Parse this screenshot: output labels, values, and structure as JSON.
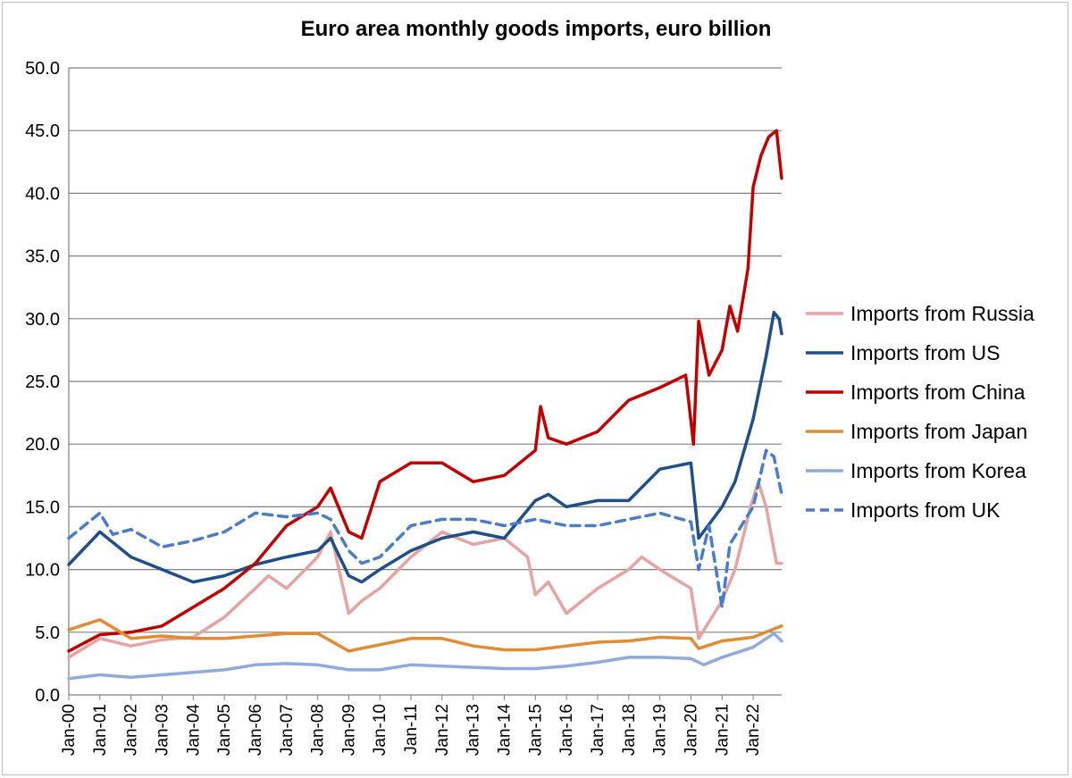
{
  "chart_data": {
    "type": "line",
    "title": "Euro area monthly goods imports, euro billion",
    "xlabel": "",
    "ylabel": "",
    "ylim": [
      0,
      50
    ],
    "yticks": [
      "0.0",
      "5.0",
      "10.0",
      "15.0",
      "20.0",
      "25.0",
      "30.0",
      "35.0",
      "40.0",
      "45.0",
      "50.0"
    ],
    "xticks": [
      "Jan-00",
      "Jan-01",
      "Jan-02",
      "Jan-03",
      "Jan-04",
      "Jan-05",
      "Jan-06",
      "Jan-07",
      "Jan-08",
      "Jan-09",
      "Jan-10",
      "Jan-11",
      "Jan-12",
      "Jan-13",
      "Jan-14",
      "Jan-15",
      "Jan-16",
      "Jan-17",
      "Jan-18",
      "Jan-19",
      "Jan-20",
      "Jan-21",
      "Jan-22"
    ],
    "x_range": [
      "Jan-00",
      "Dec-22"
    ],
    "grid": "horizontal",
    "legend_position": "right",
    "series": [
      {
        "name": "Imports from Russia",
        "color": "#e6a3a3",
        "dash": "solid",
        "points": [
          [
            "Jan-00",
            3.0
          ],
          [
            "Jan-01",
            4.5
          ],
          [
            "Jan-02",
            3.9
          ],
          [
            "Jan-03",
            4.4
          ],
          [
            "Jan-04",
            4.6
          ],
          [
            "Jan-05",
            6.2
          ],
          [
            "Jan-06",
            8.5
          ],
          [
            "Jun-06",
            9.5
          ],
          [
            "Jan-07",
            8.5
          ],
          [
            "Jan-08",
            11.0
          ],
          [
            "Jun-08",
            13.0
          ],
          [
            "Jan-09",
            6.5
          ],
          [
            "Jun-09",
            7.5
          ],
          [
            "Jan-10",
            8.5
          ],
          [
            "Jan-11",
            11.0
          ],
          [
            "Jan-12",
            13.0
          ],
          [
            "Jan-13",
            12.0
          ],
          [
            "Jan-14",
            12.5
          ],
          [
            "Oct-14",
            11.0
          ],
          [
            "Jan-15",
            8.0
          ],
          [
            "Jun-15",
            9.0
          ],
          [
            "Jan-16",
            6.5
          ],
          [
            "Jan-17",
            8.5
          ],
          [
            "Jan-18",
            10.0
          ],
          [
            "Jun-18",
            11.0
          ],
          [
            "Jan-19",
            10.0
          ],
          [
            "Jan-20",
            8.5
          ],
          [
            "Apr-20",
            4.5
          ],
          [
            "Jan-21",
            7.5
          ],
          [
            "Jun-21",
            10.0
          ],
          [
            "Dec-21",
            15.0
          ],
          [
            "Mar-22",
            17.0
          ],
          [
            "Jun-22",
            15.0
          ],
          [
            "Oct-22",
            10.5
          ],
          [
            "Dec-22",
            10.5
          ]
        ]
      },
      {
        "name": "Imports from US",
        "color": "#1f4e89",
        "dash": "solid",
        "points": [
          [
            "Jan-00",
            10.4
          ],
          [
            "Jan-01",
            13.0
          ],
          [
            "Jan-02",
            11.0
          ],
          [
            "Jan-03",
            10.0
          ],
          [
            "Jan-04",
            9.0
          ],
          [
            "Jan-05",
            9.5
          ],
          [
            "Jan-06",
            10.4
          ],
          [
            "Jan-07",
            11.0
          ],
          [
            "Jan-08",
            11.5
          ],
          [
            "Jun-08",
            12.5
          ],
          [
            "Jan-09",
            9.5
          ],
          [
            "Jun-09",
            9.0
          ],
          [
            "Jan-10",
            10.0
          ],
          [
            "Jan-11",
            11.5
          ],
          [
            "Jan-12",
            12.5
          ],
          [
            "Jan-13",
            13.0
          ],
          [
            "Jan-14",
            12.5
          ],
          [
            "Jan-15",
            15.5
          ],
          [
            "Jun-15",
            16.0
          ],
          [
            "Jan-16",
            15.0
          ],
          [
            "Jan-17",
            15.5
          ],
          [
            "Jan-18",
            15.5
          ],
          [
            "Jan-19",
            18.0
          ],
          [
            "Jan-20",
            18.5
          ],
          [
            "Apr-20",
            12.5
          ],
          [
            "Jan-21",
            15.0
          ],
          [
            "Jun-21",
            17.0
          ],
          [
            "Jan-22",
            22.0
          ],
          [
            "Jun-22",
            27.0
          ],
          [
            "Sep-22",
            30.5
          ],
          [
            "Nov-22",
            30.0
          ],
          [
            "Dec-22",
            28.8
          ]
        ]
      },
      {
        "name": "Imports from China",
        "color": "#c00000",
        "dash": "solid",
        "points": [
          [
            "Jan-00",
            3.5
          ],
          [
            "Jan-01",
            4.8
          ],
          [
            "Jan-02",
            5.0
          ],
          [
            "Jan-03",
            5.5
          ],
          [
            "Jan-04",
            7.0
          ],
          [
            "Jan-05",
            8.5
          ],
          [
            "Jan-06",
            10.5
          ],
          [
            "Jan-07",
            13.5
          ],
          [
            "Jan-08",
            15.0
          ],
          [
            "Jun-08",
            16.5
          ],
          [
            "Jan-09",
            13.0
          ],
          [
            "Jun-09",
            12.5
          ],
          [
            "Jan-10",
            17.0
          ],
          [
            "Jan-11",
            18.5
          ],
          [
            "Jan-12",
            18.5
          ],
          [
            "Jan-13",
            17.0
          ],
          [
            "Jan-14",
            17.5
          ],
          [
            "Jan-15",
            19.5
          ],
          [
            "Mar-15",
            23.0
          ],
          [
            "Jun-15",
            20.5
          ],
          [
            "Jan-16",
            20.0
          ],
          [
            "Jan-17",
            21.0
          ],
          [
            "Jan-18",
            23.5
          ],
          [
            "Jan-19",
            24.5
          ],
          [
            "Nov-19",
            25.5
          ],
          [
            "Feb-20",
            20.0
          ],
          [
            "Apr-20",
            29.8
          ],
          [
            "Aug-20",
            25.5
          ],
          [
            "Jan-21",
            27.5
          ],
          [
            "Apr-21",
            31.0
          ],
          [
            "Jul-21",
            29.0
          ],
          [
            "Nov-21",
            34.0
          ],
          [
            "Jan-22",
            40.5
          ],
          [
            "Apr-22",
            43.0
          ],
          [
            "Jul-22",
            44.5
          ],
          [
            "Oct-22",
            45.0
          ],
          [
            "Dec-22",
            41.2
          ]
        ]
      },
      {
        "name": "Imports from Japan",
        "color": "#e38b32",
        "dash": "solid",
        "points": [
          [
            "Jan-00",
            5.2
          ],
          [
            "Jan-01",
            6.0
          ],
          [
            "Jan-02",
            4.5
          ],
          [
            "Jan-03",
            4.7
          ],
          [
            "Jan-04",
            4.5
          ],
          [
            "Jan-05",
            4.5
          ],
          [
            "Jan-06",
            4.7
          ],
          [
            "Jan-07",
            4.9
          ],
          [
            "Jan-08",
            4.9
          ],
          [
            "Jan-09",
            3.5
          ],
          [
            "Jan-10",
            4.0
          ],
          [
            "Jan-11",
            4.5
          ],
          [
            "Jan-12",
            4.5
          ],
          [
            "Jan-13",
            3.9
          ],
          [
            "Jan-14",
            3.6
          ],
          [
            "Jan-15",
            3.6
          ],
          [
            "Jan-16",
            3.9
          ],
          [
            "Jan-17",
            4.2
          ],
          [
            "Jan-18",
            4.3
          ],
          [
            "Jan-19",
            4.6
          ],
          [
            "Jan-20",
            4.5
          ],
          [
            "Apr-20",
            3.7
          ],
          [
            "Jan-21",
            4.3
          ],
          [
            "Jan-22",
            4.6
          ],
          [
            "Dec-22",
            5.5
          ]
        ]
      },
      {
        "name": "Imports from Korea",
        "color": "#8faadc",
        "dash": "solid",
        "points": [
          [
            "Jan-00",
            1.3
          ],
          [
            "Jan-01",
            1.6
          ],
          [
            "Jan-02",
            1.4
          ],
          [
            "Jan-03",
            1.6
          ],
          [
            "Jan-04",
            1.8
          ],
          [
            "Jan-05",
            2.0
          ],
          [
            "Jan-06",
            2.4
          ],
          [
            "Jan-07",
            2.5
          ],
          [
            "Jan-08",
            2.4
          ],
          [
            "Jan-09",
            2.0
          ],
          [
            "Jan-10",
            2.0
          ],
          [
            "Jan-11",
            2.4
          ],
          [
            "Jan-12",
            2.3
          ],
          [
            "Jan-13",
            2.2
          ],
          [
            "Jan-14",
            2.1
          ],
          [
            "Jan-15",
            2.1
          ],
          [
            "Jan-16",
            2.3
          ],
          [
            "Jan-17",
            2.6
          ],
          [
            "Jan-18",
            3.0
          ],
          [
            "Jan-19",
            3.0
          ],
          [
            "Jan-20",
            2.9
          ],
          [
            "Jun-20",
            2.4
          ],
          [
            "Jan-21",
            3.0
          ],
          [
            "Jan-22",
            3.8
          ],
          [
            "Sep-22",
            4.9
          ],
          [
            "Dec-22",
            4.3
          ]
        ]
      },
      {
        "name": "Imports from UK",
        "color": "#4a7cc9",
        "dash": "dashed",
        "points": [
          [
            "Jan-00",
            12.5
          ],
          [
            "Jan-01",
            14.5
          ],
          [
            "Jun-01",
            12.8
          ],
          [
            "Jan-02",
            13.2
          ],
          [
            "Jan-03",
            11.8
          ],
          [
            "Jan-04",
            12.3
          ],
          [
            "Jan-05",
            13.0
          ],
          [
            "Jan-06",
            14.5
          ],
          [
            "Jan-07",
            14.2
          ],
          [
            "Jan-08",
            14.5
          ],
          [
            "Jun-08",
            14.0
          ],
          [
            "Jan-09",
            11.5
          ],
          [
            "Jun-09",
            10.5
          ],
          [
            "Jan-10",
            11.0
          ],
          [
            "Jan-11",
            13.5
          ],
          [
            "Jan-12",
            14.0
          ],
          [
            "Jan-13",
            14.0
          ],
          [
            "Jan-14",
            13.5
          ],
          [
            "Jan-15",
            14.0
          ],
          [
            "Jan-16",
            13.5
          ],
          [
            "Jan-17",
            13.5
          ],
          [
            "Jan-18",
            14.0
          ],
          [
            "Jan-19",
            14.5
          ],
          [
            "Jan-20",
            13.8
          ],
          [
            "Apr-20",
            10.0
          ],
          [
            "Aug-20",
            13.5
          ],
          [
            "Jan-21",
            7.0
          ],
          [
            "Apr-21",
            12.0
          ],
          [
            "Jan-22",
            15.0
          ],
          [
            "Jun-22",
            19.5
          ],
          [
            "Sep-22",
            19.0
          ],
          [
            "Dec-22",
            16.0
          ]
        ]
      }
    ]
  }
}
